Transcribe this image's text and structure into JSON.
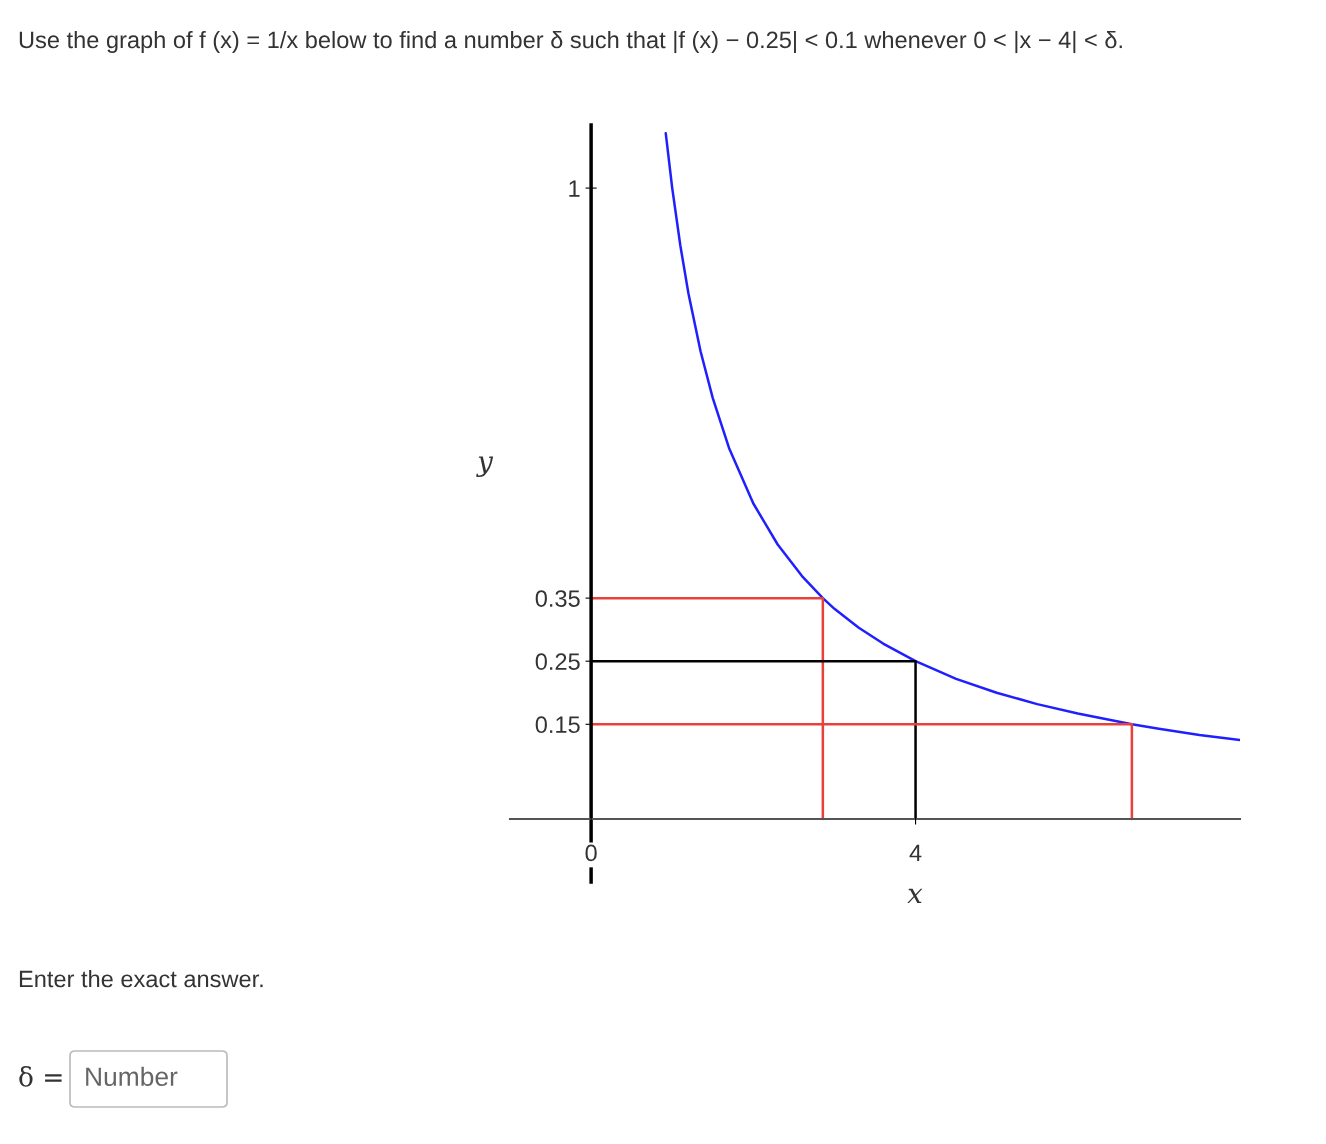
{
  "chart_data": {
    "type": "line",
    "title": "Use the graph of f (x) = 1/x below to find a number δ such that |f (x) − 0.25| < 0.1 whenever 0 < |x − 4| < δ.",
    "xlabel": "x",
    "ylabel": "y",
    "annotations": [
      "Enter the exact answer.",
      "δ =",
      "Number"
    ],
    "series": [
      {
        "color": "#2020ff",
        "x": [
          0.92,
          1,
          1.1,
          1.2,
          1.35,
          1.5,
          1.7,
          2,
          2.3,
          2.6,
          2.857,
          3,
          3.3,
          3.6,
          4,
          4.5,
          5,
          5.5,
          6,
          6.667,
          7,
          7.5,
          8
        ],
        "values": [
          1.087,
          1.0,
          0.909,
          0.833,
          0.741,
          0.667,
          0.588,
          0.5,
          0.435,
          0.385,
          0.35,
          0.333,
          0.303,
          0.278,
          0.25,
          0.222,
          0.2,
          0.182,
          0.167,
          0.15,
          0.143,
          0.133,
          0.125
        ]
      },
      {
        "color": "#e8413a",
        "x": [
          0,
          2.857,
          2.857
        ],
        "values": [
          0.35,
          0.35,
          0
        ]
      },
      {
        "color": "#000000",
        "x": [
          0,
          4,
          4
        ],
        "values": [
          0.25,
          0.25,
          0
        ]
      },
      {
        "color": "#e8413a",
        "x": [
          0,
          6.667,
          6.667
        ],
        "values": [
          0.15,
          0.15,
          0
        ]
      }
    ],
    "xlim": [
      -1,
      8
    ],
    "ylim": [
      -0.1,
      1.1
    ],
    "xticks": [
      0,
      4
    ],
    "yticks": [
      0.15,
      0.25,
      0.35,
      1
    ],
    "grid": false,
    "legend": false
  }
}
